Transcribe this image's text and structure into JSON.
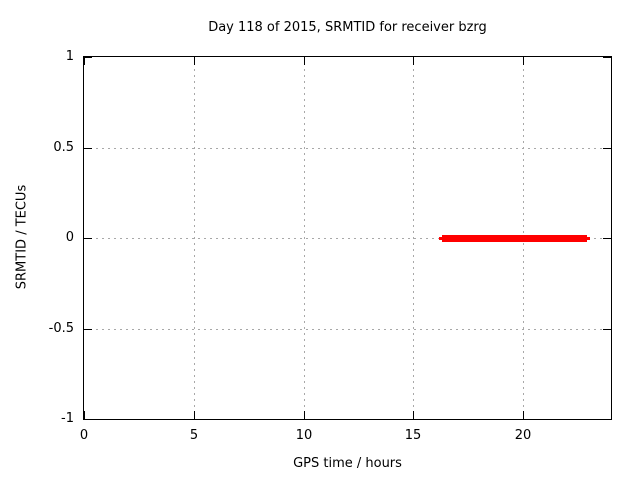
{
  "chart_data": {
    "type": "line",
    "title": "Day 118 of 2015, SRMTID for receiver bzrg",
    "xlabel": "GPS time / hours",
    "ylabel": "SRMTID / TECUs",
    "xlim": [
      0,
      24
    ],
    "ylim": [
      -1,
      1
    ],
    "xticks": [
      0,
      5,
      10,
      15,
      20
    ],
    "yticks": [
      -1,
      -0.5,
      0,
      0.5,
      1
    ],
    "grid": true,
    "legend": "none",
    "colors": {
      "series": "#ff0000",
      "grid": "#a8a8a8",
      "axis": "#000000"
    },
    "series": [
      {
        "name": "SRMTID",
        "color": "#ff0000",
        "style": "thick horizontal segment",
        "y": 0,
        "x_start": 16.3,
        "x_end": 22.9
      }
    ]
  }
}
